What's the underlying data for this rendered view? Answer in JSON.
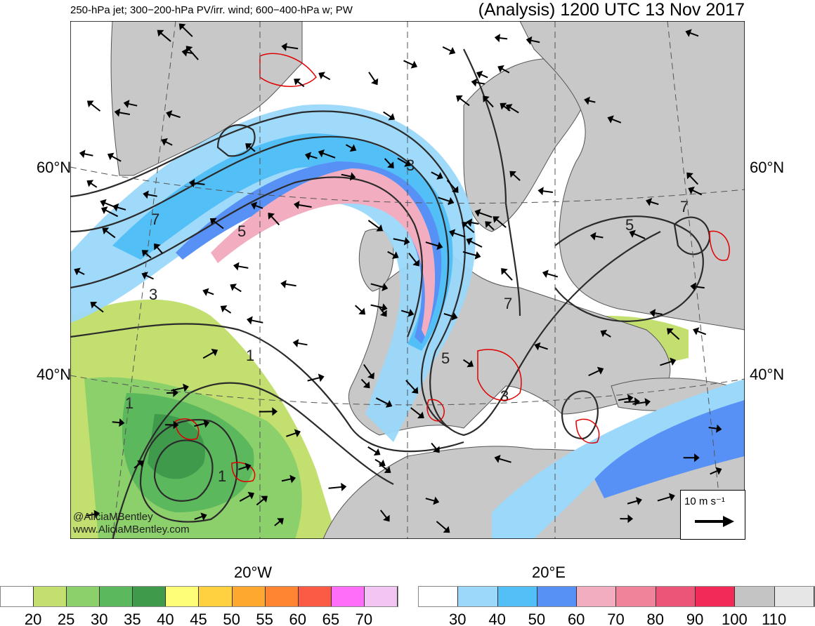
{
  "header": {
    "subtitle": "250-hPa jet; 300−200-hPa PV/irr. wind; 600−400-hPa w; PW",
    "title": "(Analysis) 1200 UTC 13 Nov 2017"
  },
  "axes": {
    "lat_left": [
      "60°N",
      "40°N"
    ],
    "lat_right": [
      "60°N",
      "40°N"
    ],
    "lon": [
      "20°W",
      "20°E"
    ]
  },
  "contour_labels": [
    "7",
    "5",
    "3",
    "1",
    "3",
    "5",
    "7",
    "5",
    "7",
    "1",
    "3",
    "1"
  ],
  "watermark": {
    "handle": "@AliciaMBentley",
    "site": "www.AliciaMBentley.com"
  },
  "reference_vector": {
    "label": "10 m s⁻¹"
  },
  "legend_pw": {
    "colors": [
      "#ffffff",
      "#c2df6f",
      "#8bd06a",
      "#5cb85c",
      "#3f9a4c",
      "#ffff77",
      "#ffd03f",
      "#ffa82f",
      "#ff8533",
      "#fb5a44",
      "#ff6ef8",
      "#f2c5f2"
    ],
    "ticks": [
      "20",
      "25",
      "30",
      "35",
      "40",
      "45",
      "50",
      "55",
      "60",
      "65",
      "70"
    ]
  },
  "legend_jet": {
    "colors": [
      "#ffffff",
      "#9bd8fa",
      "#53bff7",
      "#5791f5",
      "#f2aec0",
      "#f08299",
      "#ec5478",
      "#f22a58",
      "#c4c4c4",
      "#e6e6e6"
    ],
    "ticks": [
      "30",
      "40",
      "50",
      "60",
      "70",
      "80",
      "90",
      "100",
      "110"
    ]
  },
  "colors": {
    "land": "#c8c8c8",
    "coast": "#555555",
    "pv_contour": "#2b2b2b",
    "ascent": "#e00000"
  }
}
